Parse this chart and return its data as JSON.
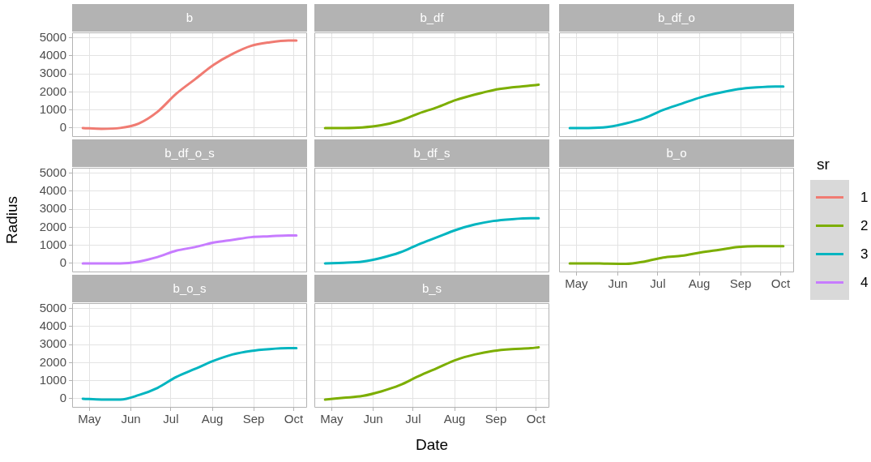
{
  "chart_data": [
    {
      "type": "line",
      "title": "b",
      "tick_labels": "y",
      "grid": true,
      "ylim": [
        -500,
        5300
      ],
      "yticks": [
        0,
        1000,
        2000,
        3000,
        4000,
        5000
      ],
      "xlim": [
        "--04-18",
        "--10-11"
      ],
      "xticks": [
        {
          "value": "--05-01",
          "label": "May"
        },
        {
          "value": "--06-01",
          "label": "Jun"
        },
        {
          "value": "--07-01",
          "label": "Jul"
        },
        {
          "value": "--08-01",
          "label": "Aug"
        },
        {
          "value": "--09-01",
          "label": "Sep"
        },
        {
          "value": "--10-01",
          "label": "Oct"
        }
      ],
      "x": [
        "--04-26",
        "--05-10",
        "--05-24",
        "--06-07",
        "--06-21",
        "--07-05",
        "--07-19",
        "--08-02",
        "--08-16",
        "--08-30",
        "--09-13",
        "--09-27",
        "--10-03"
      ],
      "series": [
        {
          "name": "1",
          "color": "#f07b72",
          "values": [
            0,
            -50,
            0,
            250,
            900,
            1900,
            2700,
            3500,
            4100,
            4550,
            4750,
            4850,
            4850
          ]
        }
      ]
    },
    {
      "type": "line",
      "title": "b_df",
      "tick_labels": false,
      "grid": true,
      "ylim": [
        -500,
        5300
      ],
      "yticks": [
        0,
        1000,
        2000,
        3000,
        4000,
        5000
      ],
      "xlim": [
        "--04-18",
        "--10-11"
      ],
      "xticks": [
        {
          "value": "--05-01",
          "label": "May"
        },
        {
          "value": "--06-01",
          "label": "Jun"
        },
        {
          "value": "--07-01",
          "label": "Jul"
        },
        {
          "value": "--08-01",
          "label": "Aug"
        },
        {
          "value": "--09-01",
          "label": "Sep"
        },
        {
          "value": "--10-01",
          "label": "Oct"
        }
      ],
      "x": [
        "--04-26",
        "--05-10",
        "--05-24",
        "--06-07",
        "--06-21",
        "--07-05",
        "--07-19",
        "--08-02",
        "--08-16",
        "--08-30",
        "--09-13",
        "--09-27",
        "--10-03"
      ],
      "series": [
        {
          "name": "2",
          "color": "#7cae00",
          "values": [
            0,
            0,
            30,
            150,
            400,
            800,
            1150,
            1550,
            1850,
            2100,
            2250,
            2350,
            2400
          ]
        }
      ]
    },
    {
      "type": "line",
      "title": "b_df_o",
      "tick_labels": false,
      "grid": true,
      "ylim": [
        -500,
        5300
      ],
      "yticks": [
        0,
        1000,
        2000,
        3000,
        4000,
        5000
      ],
      "xlim": [
        "--04-18",
        "--10-11"
      ],
      "xticks": [
        {
          "value": "--05-01",
          "label": "May"
        },
        {
          "value": "--06-01",
          "label": "Jun"
        },
        {
          "value": "--07-01",
          "label": "Jul"
        },
        {
          "value": "--08-01",
          "label": "Aug"
        },
        {
          "value": "--09-01",
          "label": "Sep"
        },
        {
          "value": "--10-01",
          "label": "Oct"
        }
      ],
      "x": [
        "--04-26",
        "--05-10",
        "--05-24",
        "--06-07",
        "--06-21",
        "--07-05",
        "--07-19",
        "--08-02",
        "--08-16",
        "--08-30",
        "--09-13",
        "--09-27",
        "--10-03"
      ],
      "series": [
        {
          "name": "3",
          "color": "#00b5c0",
          "values": [
            0,
            0,
            50,
            250,
            550,
            1000,
            1350,
            1700,
            1950,
            2150,
            2250,
            2300,
            2300
          ]
        }
      ]
    },
    {
      "type": "line",
      "title": "b_df_o_s",
      "ylabel": "Radius",
      "tick_labels": "y",
      "grid": true,
      "ylim": [
        -500,
        5300
      ],
      "yticks": [
        0,
        1000,
        2000,
        3000,
        4000,
        5000
      ],
      "xlim": [
        "--04-18",
        "--10-11"
      ],
      "xticks": [
        {
          "value": "--05-01",
          "label": "May"
        },
        {
          "value": "--06-01",
          "label": "Jun"
        },
        {
          "value": "--07-01",
          "label": "Jul"
        },
        {
          "value": "--08-01",
          "label": "Aug"
        },
        {
          "value": "--09-01",
          "label": "Sep"
        },
        {
          "value": "--10-01",
          "label": "Oct"
        }
      ],
      "x": [
        "--04-26",
        "--05-10",
        "--05-24",
        "--06-07",
        "--06-21",
        "--07-05",
        "--07-19",
        "--08-02",
        "--08-16",
        "--08-30",
        "--09-13",
        "--09-27",
        "--10-03"
      ],
      "series": [
        {
          "name": "4",
          "color": "#c77cff",
          "values": [
            0,
            0,
            0,
            100,
            350,
            700,
            900,
            1150,
            1300,
            1450,
            1500,
            1550,
            1550
          ]
        }
      ]
    },
    {
      "type": "line",
      "title": "b_df_s",
      "tick_labels": false,
      "grid": true,
      "ylim": [
        -500,
        5300
      ],
      "yticks": [
        0,
        1000,
        2000,
        3000,
        4000,
        5000
      ],
      "xlim": [
        "--04-18",
        "--10-11"
      ],
      "xticks": [
        {
          "value": "--05-01",
          "label": "May"
        },
        {
          "value": "--06-01",
          "label": "Jun"
        },
        {
          "value": "--07-01",
          "label": "Jul"
        },
        {
          "value": "--08-01",
          "label": "Aug"
        },
        {
          "value": "--09-01",
          "label": "Sep"
        },
        {
          "value": "--10-01",
          "label": "Oct"
        }
      ],
      "x": [
        "--04-26",
        "--05-10",
        "--05-24",
        "--06-07",
        "--06-21",
        "--07-05",
        "--07-19",
        "--08-02",
        "--08-16",
        "--08-30",
        "--09-13",
        "--09-27",
        "--10-03"
      ],
      "series": [
        {
          "name": "3",
          "color": "#00b5c0",
          "values": [
            0,
            30,
            100,
            300,
            600,
            1050,
            1450,
            1850,
            2150,
            2350,
            2450,
            2500,
            2500
          ]
        }
      ]
    },
    {
      "type": "line",
      "title": "b_o",
      "tick_labels": "x",
      "grid": true,
      "legend": "right",
      "legend_title": "sr",
      "ylim": [
        -500,
        5300
      ],
      "yticks": [
        0,
        1000,
        2000,
        3000,
        4000,
        5000
      ],
      "xlim": [
        "--04-18",
        "--10-11"
      ],
      "xticks": [
        {
          "value": "--05-01",
          "label": "May"
        },
        {
          "value": "--06-01",
          "label": "Jun"
        },
        {
          "value": "--07-01",
          "label": "Jul"
        },
        {
          "value": "--08-01",
          "label": "Aug"
        },
        {
          "value": "--09-01",
          "label": "Sep"
        },
        {
          "value": "--10-01",
          "label": "Oct"
        }
      ],
      "x": [
        "--04-26",
        "--05-10",
        "--05-24",
        "--06-07",
        "--06-21",
        "--07-05",
        "--07-19",
        "--08-02",
        "--08-16",
        "--08-30",
        "--09-13",
        "--09-27",
        "--10-03"
      ],
      "series": [
        {
          "name": "2",
          "color": "#7cae00",
          "values": [
            0,
            0,
            -20,
            -30,
            100,
            320,
            420,
            600,
            750,
            900,
            950,
            950,
            950
          ]
        }
      ]
    },
    {
      "type": "line",
      "title": "b_o_s",
      "grid": true,
      "ylim": [
        -500,
        5300
      ],
      "yticks": [
        0,
        1000,
        2000,
        3000,
        4000,
        5000
      ],
      "xlim": [
        "--04-18",
        "--10-11"
      ],
      "xticks": [
        {
          "value": "--05-01",
          "label": "May"
        },
        {
          "value": "--06-01",
          "label": "Jun"
        },
        {
          "value": "--07-01",
          "label": "Jul"
        },
        {
          "value": "--08-01",
          "label": "Aug"
        },
        {
          "value": "--09-01",
          "label": "Sep"
        },
        {
          "value": "--10-01",
          "label": "Oct"
        }
      ],
      "x": [
        "--04-26",
        "--05-10",
        "--05-24",
        "--06-07",
        "--06-21",
        "--07-05",
        "--07-19",
        "--08-02",
        "--08-16",
        "--08-30",
        "--09-13",
        "--09-27",
        "--10-03"
      ],
      "series": [
        {
          "name": "3",
          "color": "#00b5c0",
          "values": [
            0,
            -50,
            -50,
            200,
            600,
            1200,
            1650,
            2100,
            2450,
            2650,
            2750,
            2800,
            2800
          ]
        }
      ]
    },
    {
      "type": "line",
      "title": "b_s",
      "xlabel": "Date",
      "tick_labels": "x",
      "grid": true,
      "ylim": [
        -500,
        5300
      ],
      "yticks": [
        0,
        1000,
        2000,
        3000,
        4000,
        5000
      ],
      "xlim": [
        "--04-18",
        "--10-11"
      ],
      "xticks": [
        {
          "value": "--05-01",
          "label": "May"
        },
        {
          "value": "--06-01",
          "label": "Jun"
        },
        {
          "value": "--07-01",
          "label": "Jul"
        },
        {
          "value": "--08-01",
          "label": "Aug"
        },
        {
          "value": "--09-01",
          "label": "Sep"
        },
        {
          "value": "--10-01",
          "label": "Oct"
        }
      ],
      "x": [
        "--04-26",
        "--05-10",
        "--05-24",
        "--06-07",
        "--06-21",
        "--07-05",
        "--07-19",
        "--08-02",
        "--08-16",
        "--08-30",
        "--09-13",
        "--09-27",
        "--10-03"
      ],
      "series": [
        {
          "name": "2",
          "color": "#7cae00",
          "values": [
            -50,
            50,
            150,
            400,
            750,
            1250,
            1700,
            2150,
            2450,
            2650,
            2750,
            2800,
            2850
          ]
        }
      ]
    }
  ]
}
